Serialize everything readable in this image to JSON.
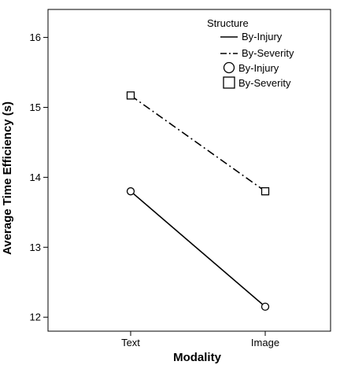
{
  "chart_data": {
    "type": "line",
    "title": "",
    "xlabel": "Modality",
    "ylabel": "Average Time Efficiency (s)",
    "categories": [
      "Text",
      "Image"
    ],
    "ylim": [
      11.8,
      16.4
    ],
    "yticks": [
      12,
      13,
      14,
      15,
      16
    ],
    "yticks_labels": [
      "12",
      "13",
      "14",
      "15",
      "16"
    ],
    "grid": false,
    "legend_position": "top-right",
    "legend": {
      "title": "Structure",
      "entries": [
        {
          "label": "By-Injury",
          "kind": "line",
          "style": "solid"
        },
        {
          "label": "By-Severity",
          "kind": "line",
          "style": "dash-dot"
        },
        {
          "label": "By-Injury",
          "kind": "marker",
          "marker": "circle"
        },
        {
          "label": "By-Severity",
          "kind": "marker",
          "marker": "square"
        }
      ]
    },
    "series": [
      {
        "name": "By-Injury",
        "values": [
          13.8,
          12.15
        ],
        "line_style": "solid",
        "marker": "circle",
        "color": "#000000"
      },
      {
        "name": "By-Severity",
        "values": [
          15.17,
          13.8
        ],
        "line_style": "dash-dot",
        "marker": "square",
        "color": "#000000"
      }
    ]
  }
}
